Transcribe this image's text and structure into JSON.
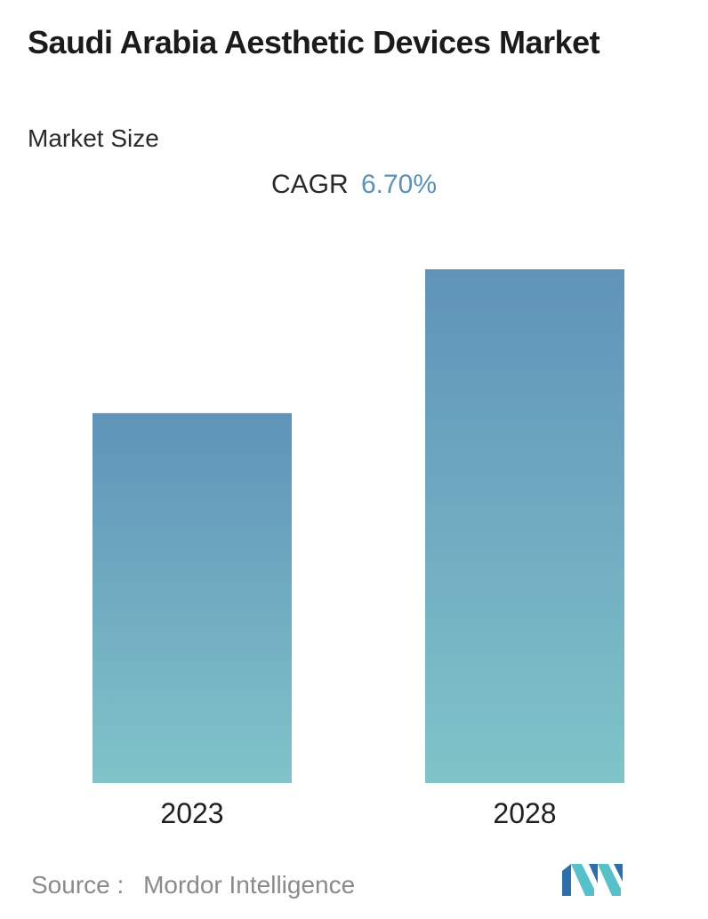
{
  "title": "Saudi Arabia Aesthetic Devices Market",
  "subtitle": "Market Size",
  "cagr": {
    "label": "CAGR",
    "value": "6.70%"
  },
  "footer": {
    "source_label": "Source :",
    "source_name": "Mordor Intelligence"
  },
  "logo": {
    "icon": "mordor-intelligence-logo"
  },
  "colors": {
    "bar_top": "#5f93b9",
    "bar_bottom": "#80c4c9",
    "cagr_accent": "#5d91b5",
    "logo_blue": "#2f6fa8",
    "logo_teal": "#58c0c8"
  },
  "chart_data": {
    "type": "bar",
    "categories": [
      "2023",
      "2028"
    ],
    "values": [
      72,
      100
    ],
    "ylim": [
      0,
      100
    ],
    "grid": false,
    "legend": "none"
  }
}
